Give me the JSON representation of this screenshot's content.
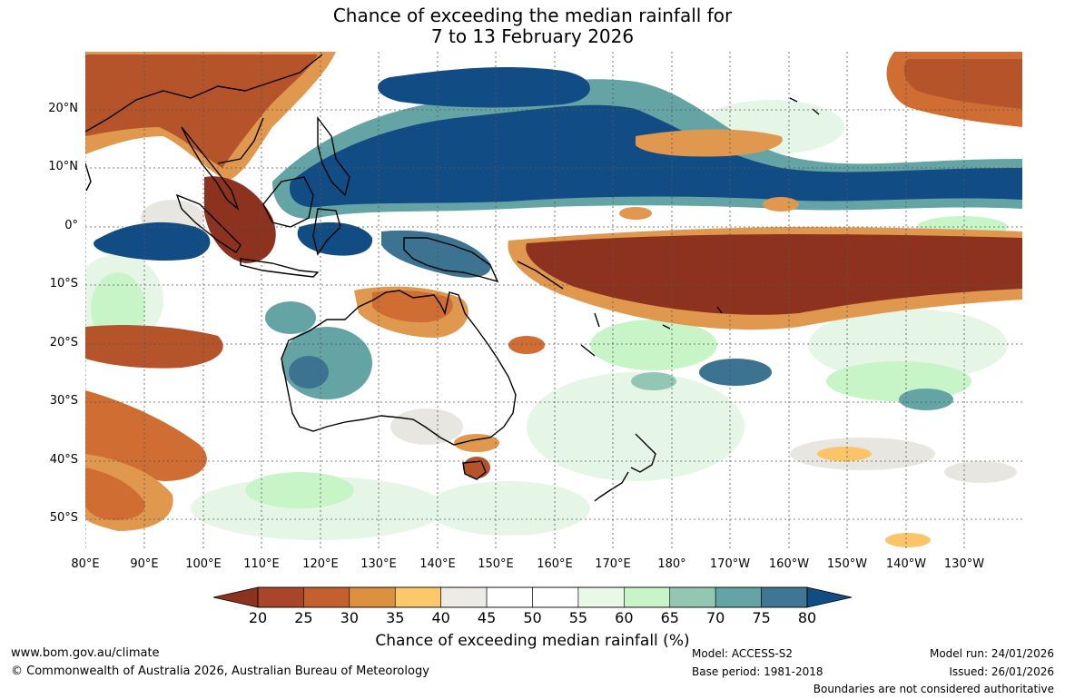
{
  "title": {
    "line1": "Chance of exceeding the median rainfall for",
    "line2": "7 to 13 February 2026"
  },
  "map": {
    "lat_labels": [
      "20°N",
      "10°N",
      "0°",
      "10°S",
      "20°S",
      "30°S",
      "40°S",
      "50°S"
    ],
    "lon_labels": [
      "80°E",
      "90°E",
      "100°E",
      "110°E",
      "120°E",
      "130°E",
      "140°E",
      "150°E",
      "160°E",
      "170°E",
      "180°",
      "170°W",
      "160°W",
      "150°W",
      "140°W",
      "130°W"
    ],
    "colors": {
      "dry_strong": "#8e3220",
      "dry": "#b5532b",
      "dry_mid": "#cf6d33",
      "dry_light": "#e0984e",
      "dry_faint": "#fcc468",
      "neutral_grey": "#e8e6e1",
      "neutral": "#ffffff",
      "wet_faint": "#e6f6e6",
      "wet_light": "#c8f5c8",
      "wet_mid": "#94c7b3",
      "wet": "#64a4a4",
      "wet_strong": "#3c7391",
      "wet_max": "#114d84"
    }
  },
  "colorbar": {
    "ticks": [
      "20",
      "25",
      "30",
      "35",
      "40",
      "45",
      "50",
      "55",
      "60",
      "65",
      "70",
      "75",
      "80"
    ],
    "colors": [
      "#a9452a",
      "#c4602f",
      "#dd913f",
      "#fdc86b",
      "#ecebe6",
      "#ffffff",
      "#ffffff",
      "#e9f8e9",
      "#c8f5c8",
      "#94c7b3",
      "#64a4a4",
      "#3f7694"
    ],
    "under_color": "#8e3220",
    "over_color": "#114d84",
    "label": "Chance of exceeding median rainfall (%)"
  },
  "footer": {
    "website": "www.bom.gov.au/climate",
    "copyright": "© Commonwealth of Australia 2026, Australian Bureau of Meteorology",
    "model": "Model: ACCESS-S2",
    "base_period": "Base period: 1981-2018",
    "model_run": "Model run: 24/01/2026",
    "issued": "Issued: 26/01/2026",
    "disclaimer": "Boundaries are not considered authoritative"
  }
}
